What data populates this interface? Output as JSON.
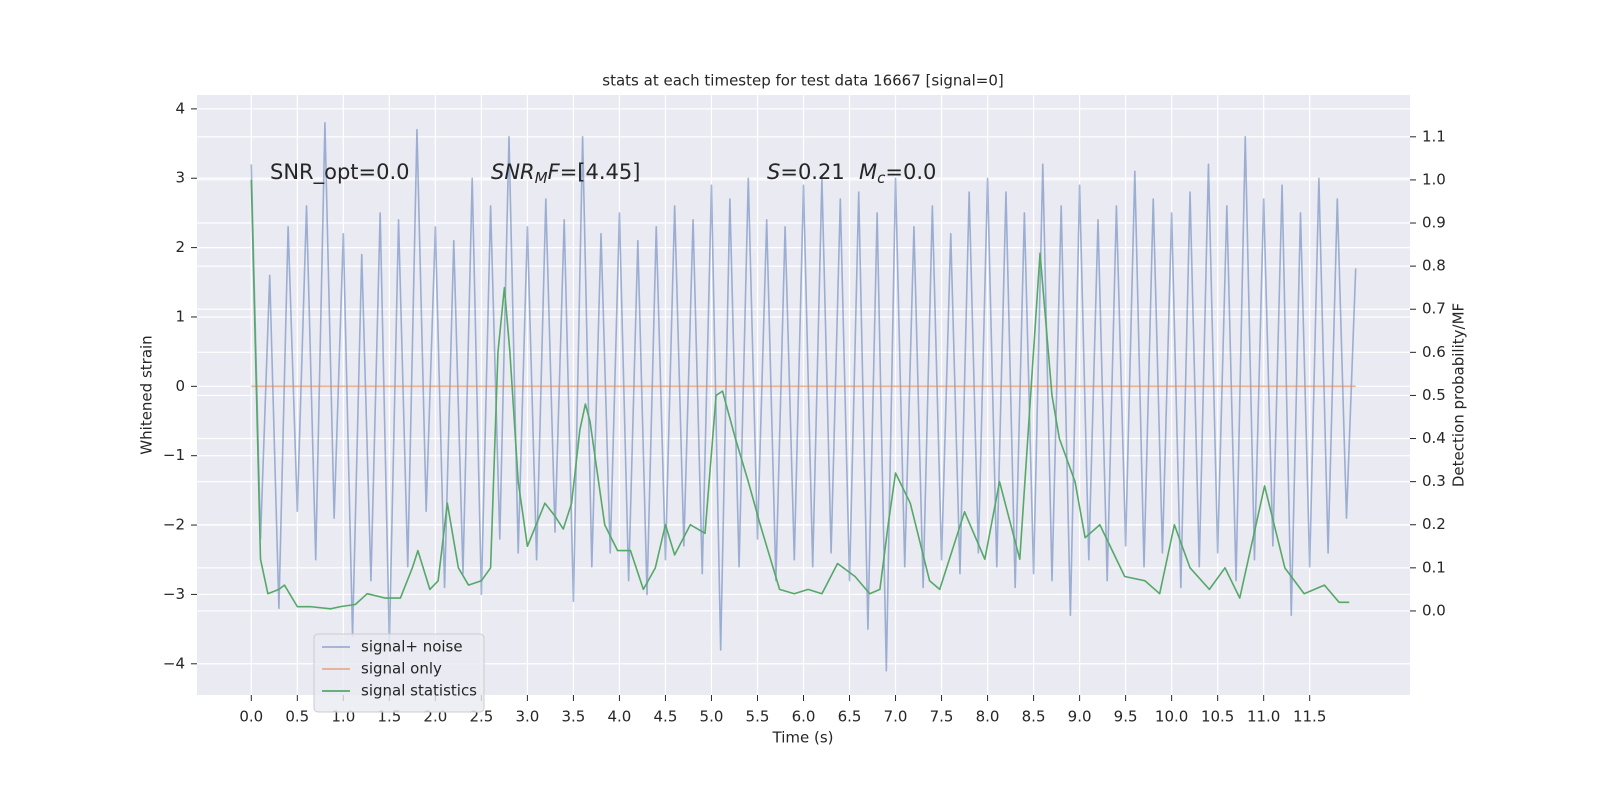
{
  "chart_data": {
    "type": "line",
    "title": "stats at each timestep for test data 16667 [signal=0]",
    "x_label": "Time (s)",
    "y_label": "Whitened strain",
    "y2_label": "Detection probability/MF",
    "annotations": [
      [
        {
          "text": "SNR_opt=0.0"
        }
      ],
      [
        {
          "text": "SNR",
          "italic": true
        },
        {
          "text": "M",
          "italic": true,
          "sub": true
        },
        {
          "text": "F",
          "italic": true
        },
        {
          "text": "=[4.45]"
        }
      ],
      [
        {
          "text": "S",
          "italic": true
        },
        {
          "text": "=0.21"
        }
      ],
      [
        {
          "text": "M",
          "italic": true
        },
        {
          "text": "c",
          "italic": true,
          "sub": true
        },
        {
          "text": "=0.0"
        }
      ]
    ],
    "x": [
      0.0,
      0.1,
      0.2,
      0.3,
      0.4,
      0.5,
      0.6,
      0.7,
      0.8,
      0.9,
      1.0,
      1.1,
      1.2,
      1.3,
      1.4,
      1.5,
      1.6,
      1.7,
      1.8,
      1.9,
      2.0,
      2.1,
      2.2,
      2.3,
      2.4,
      2.5,
      2.6,
      2.7,
      2.8,
      2.9,
      3.0,
      3.1,
      3.2,
      3.3,
      3.4,
      3.5,
      3.6,
      3.7,
      3.8,
      3.9,
      4.0,
      4.1,
      4.2,
      4.3,
      4.4,
      4.5,
      4.6,
      4.7,
      4.8,
      4.9,
      5.0,
      5.1,
      5.2,
      5.3,
      5.4,
      5.5,
      5.6,
      5.7,
      5.8,
      5.9,
      6.0,
      6.1,
      6.2,
      6.3,
      6.4,
      6.5,
      6.6,
      6.7,
      6.8,
      6.9,
      7.0,
      7.1,
      7.2,
      7.3,
      7.4,
      7.5,
      7.6,
      7.7,
      7.8,
      7.9,
      8.0,
      8.1,
      8.2,
      8.3,
      8.4,
      8.5,
      8.6,
      8.7,
      8.8,
      8.9,
      9.0,
      9.1,
      9.2,
      9.3,
      9.4,
      9.5,
      9.6,
      9.7,
      9.8,
      9.9,
      10.0,
      10.1,
      10.2,
      10.3,
      10.4,
      10.5,
      10.6,
      10.7,
      10.8,
      10.9,
      11.0,
      11.1,
      11.2,
      11.3,
      11.4,
      11.5,
      11.6,
      11.7,
      11.8,
      11.9,
      12.0
    ],
    "series": [
      {
        "name": "signal+ noise",
        "color": "#4c72b0",
        "opacity": 0.5,
        "values": [
          3.2,
          -2.2,
          1.6,
          -3.2,
          2.3,
          -1.8,
          2.6,
          -2.5,
          3.8,
          -1.9,
          2.2,
          -3.6,
          1.9,
          -2.8,
          2.5,
          -3.7,
          2.4,
          -2.6,
          3.7,
          -1.8,
          2.3,
          -2.9,
          2.1,
          -2.7,
          3.0,
          -3.0,
          2.6,
          -2.2,
          3.6,
          -2.4,
          2.3,
          -2.5,
          2.7,
          -2.1,
          2.4,
          -3.1,
          3.6,
          -2.6,
          2.2,
          -2.4,
          2.5,
          -2.8,
          2.1,
          -3.0,
          2.3,
          -2.5,
          2.6,
          -2.3,
          2.4,
          -2.7,
          2.9,
          -3.8,
          2.7,
          -2.6,
          3.0,
          -2.2,
          2.4,
          -2.8,
          2.3,
          -2.5,
          2.9,
          -2.6,
          3.0,
          -2.4,
          2.7,
          -2.8,
          2.8,
          -3.5,
          2.5,
          -4.1,
          3.0,
          -2.6,
          2.3,
          -2.9,
          2.6,
          -2.5,
          2.2,
          -2.7,
          2.8,
          -2.4,
          3.0,
          -2.6,
          2.8,
          -2.9,
          2.5,
          -2.7,
          3.2,
          -2.8,
          2.6,
          -3.3,
          2.9,
          -2.5,
          2.4,
          -2.8,
          2.6,
          -2.3,
          3.1,
          -2.6,
          2.7,
          -2.4,
          2.5,
          -2.9,
          2.8,
          -2.6,
          3.2,
          -2.4,
          2.6,
          -2.8,
          3.6,
          -2.5,
          2.7,
          -2.3,
          2.9,
          -3.3,
          2.5,
          -2.6,
          3.0,
          -2.4,
          2.7,
          -1.9,
          1.7
        ]
      },
      {
        "name": "signal only",
        "color": "#dd8452",
        "opacity": 0.6,
        "x": [
          0.0,
          12.0
        ],
        "values": [
          0,
          0
        ]
      },
      {
        "name": "signal statistics",
        "color": "#55a868",
        "opacity": 1,
        "axis": "y2",
        "x": [
          0.0,
          0.1,
          0.18,
          0.3,
          0.36,
          0.5,
          0.64,
          0.86,
          0.97,
          1.13,
          1.26,
          1.45,
          1.62,
          1.75,
          1.81,
          1.94,
          2.03,
          2.13,
          2.25,
          2.36,
          2.5,
          2.6,
          2.68,
          2.75,
          2.81,
          2.9,
          3.0,
          3.19,
          3.3,
          3.39,
          3.48,
          3.57,
          3.63,
          3.68,
          3.84,
          3.98,
          4.12,
          4.26,
          4.39,
          4.5,
          4.6,
          4.77,
          4.93,
          5.05,
          5.12,
          5.26,
          5.4,
          5.53,
          5.74,
          5.9,
          6.05,
          6.2,
          6.37,
          6.56,
          6.72,
          6.83,
          6.92,
          7.0,
          7.16,
          7.37,
          7.48,
          7.75,
          7.97,
          8.13,
          8.35,
          8.57,
          8.7,
          8.78,
          8.95,
          9.06,
          9.22,
          9.49,
          9.71,
          9.87,
          10.03,
          10.2,
          10.41,
          10.58,
          10.74,
          11.01,
          11.23,
          11.44,
          11.66,
          11.82,
          11.93
        ],
        "values": [
          1.0,
          0.12,
          0.04,
          0.05,
          0.06,
          0.01,
          0.01,
          0.005,
          0.01,
          0.015,
          0.04,
          0.03,
          0.03,
          0.1,
          0.14,
          0.05,
          0.07,
          0.25,
          0.1,
          0.06,
          0.07,
          0.1,
          0.6,
          0.75,
          0.6,
          0.3,
          0.15,
          0.25,
          0.22,
          0.19,
          0.25,
          0.42,
          0.48,
          0.44,
          0.2,
          0.14,
          0.14,
          0.05,
          0.1,
          0.2,
          0.13,
          0.2,
          0.18,
          0.5,
          0.51,
          0.4,
          0.3,
          0.2,
          0.05,
          0.04,
          0.05,
          0.04,
          0.11,
          0.08,
          0.04,
          0.05,
          0.2,
          0.32,
          0.25,
          0.07,
          0.05,
          0.23,
          0.12,
          0.3,
          0.12,
          0.83,
          0.5,
          0.4,
          0.3,
          0.17,
          0.2,
          0.08,
          0.07,
          0.04,
          0.2,
          0.1,
          0.05,
          0.1,
          0.03,
          0.29,
          0.1,
          0.04,
          0.06,
          0.02,
          0.02
        ]
      }
    ],
    "xlim": [
      -0.59,
      12.59
    ],
    "xticks": [
      {
        "value": 0,
        "label": "0.0"
      },
      0.5,
      {
        "value": 1,
        "label": "1.0"
      },
      1.5,
      {
        "value": 2,
        "label": "2.0"
      },
      2.5,
      {
        "value": 3,
        "label": "3.0"
      },
      3.5,
      {
        "value": 4,
        "label": "4.0"
      },
      4.5,
      {
        "value": 5,
        "label": "5.0"
      },
      5.5,
      {
        "value": 6,
        "label": "6.0"
      },
      6.5,
      {
        "value": 7,
        "label": "7.0"
      },
      7.5,
      {
        "value": 8,
        "label": "8.0"
      },
      8.5,
      {
        "value": 9,
        "label": "9.0"
      },
      9.5,
      {
        "value": 10,
        "label": "10.0"
      },
      10.5,
      {
        "value": 11,
        "label": "11.0"
      },
      11.5
    ],
    "ylim": [
      -4.45,
      4.2
    ],
    "yticks": [
      {
        "value": -4,
        "label": "−4"
      },
      {
        "value": -3,
        "label": "−3"
      },
      {
        "value": -2,
        "label": "−2"
      },
      {
        "value": -1,
        "label": "−1"
      },
      0,
      1,
      2,
      3,
      4
    ],
    "y2lim": [
      -0.195,
      1.197
    ],
    "y2ticks": [
      {
        "value": 0,
        "label": "0.0"
      },
      0.1,
      0.2,
      0.3,
      0.4,
      0.5,
      0.6,
      0.7,
      0.8,
      0.9,
      {
        "value": 1,
        "label": "1.0"
      },
      1.1
    ],
    "grid": true,
    "legend": "lower left"
  }
}
